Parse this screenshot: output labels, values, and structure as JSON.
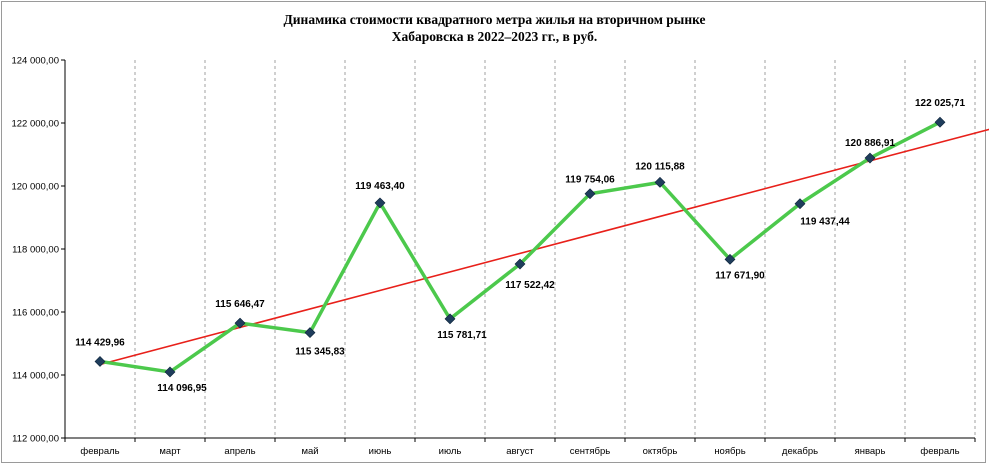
{
  "chart_data": {
    "type": "line",
    "title_line1": "Динамика стоимости квадратного метра жилья на вторичном рынке",
    "title_line2": "Хабаровска в 2022–2023 гг., в руб.",
    "categories": [
      "февраль",
      "март",
      "апрель",
      "май",
      "июнь",
      "июль",
      "август",
      "сентябрь",
      "октябрь",
      "ноябрь",
      "декабрь",
      "январь",
      "февраль"
    ],
    "y_ticks": [
      "112 000,00",
      "114 000,00",
      "116 000,00",
      "118 000,00",
      "120 000,00",
      "122 000,00",
      "124 000,00"
    ],
    "ylim": [
      112000,
      124000
    ],
    "grid": "vertical dashed",
    "series": [
      {
        "values": [
          114429.96,
          114096.95,
          115646.47,
          115345.83,
          119463.4,
          115781.71,
          117522.42,
          119754.06,
          120115.88,
          117671.9,
          119437.44,
          120886.91,
          122025.71
        ],
        "labels": [
          "114 429,96",
          "114 096,95",
          "115 646,47",
          "115 345,83",
          "119 463,40",
          "115 781,71",
          "117 522,42",
          "119 754,06",
          "120 115,88",
          "117 671,90",
          "119 437,44",
          "120 886,91",
          "122 025,71"
        ],
        "color": "#4cc94c",
        "marker_color": "#1f3d5c"
      }
    ],
    "trendline": {
      "type": "linear",
      "color": "#e8201a"
    }
  }
}
